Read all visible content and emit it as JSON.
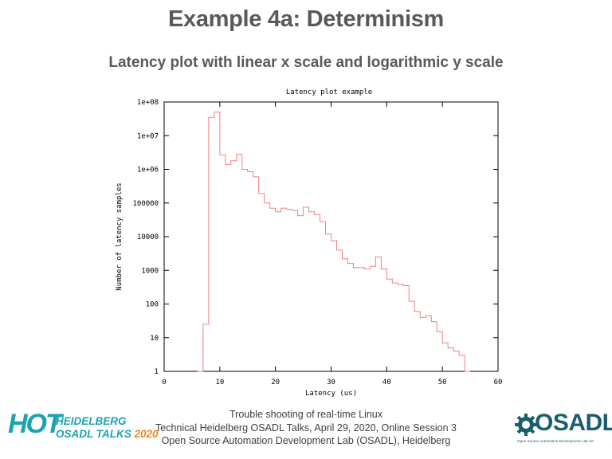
{
  "slide": {
    "title": "Example 4a: Determinism",
    "subtitle": "Latency plot with linear x scale and logarithmic y scale"
  },
  "footer": {
    "line1": "Trouble shooting of real-time Linux",
    "line2": "Technical Heidelberg OSADL Talks, April 29, 2020, Online Session 3",
    "line3": "Open Source Automation Development Lab (OSADL), Heidelberg"
  },
  "logos": {
    "hot": {
      "mark": "HOT",
      "line1": "HEIDELBERG",
      "line2": "OSADL TALKS",
      "year": "2020"
    },
    "osadl": {
      "name": "OSADL",
      "tagline": "Open Source Automation Development Lab eG"
    }
  },
  "colors": {
    "series": "#f08080",
    "title_text": "#595959",
    "hot_teal": "#1aa3b0",
    "hot_orange": "#e8891e",
    "osadl_teal": "#1a5e6e"
  },
  "chart_data": {
    "type": "line",
    "title": "Latency plot example",
    "xlabel": "Latency (us)",
    "ylabel": "Number of latency samples",
    "xlim": [
      0,
      60
    ],
    "ylim": [
      1,
      100000000
    ],
    "y_scale": "log",
    "x_ticks": [
      0,
      10,
      20,
      30,
      40,
      50,
      60
    ],
    "x_tick_labels": [
      "0",
      "10",
      "20",
      "30",
      "40",
      "50",
      "60"
    ],
    "y_ticks": [
      1,
      10,
      100,
      1000,
      10000,
      100000,
      1000000,
      10000000,
      100000000
    ],
    "y_tick_labels": [
      "1",
      "10",
      "100",
      "1000",
      "10000",
      "100000",
      "1e+06",
      "1e+07",
      "1e+08"
    ],
    "grid": false,
    "legend": "none",
    "style": "step",
    "series": [
      {
        "x": [
          6,
          6.3,
          7,
          8,
          9,
          10,
          11,
          12,
          13,
          14,
          15,
          16,
          17,
          18,
          19,
          20,
          21,
          22,
          23,
          24,
          25,
          26,
          27,
          28,
          29,
          30,
          31,
          32,
          33,
          34,
          35,
          36,
          37,
          38,
          39,
          40,
          41,
          42,
          43,
          44,
          45,
          46,
          47,
          48,
          49,
          50,
          51,
          52,
          53,
          54,
          55
        ],
        "y": [
          1,
          1,
          25,
          35000000,
          50000000,
          2700000,
          1400000,
          1800000,
          2800000,
          1000000,
          850000,
          600000,
          190000,
          100000,
          70000,
          55000,
          70000,
          65000,
          60000,
          42000,
          75000,
          55000,
          45000,
          28000,
          12000,
          7500,
          4000,
          2200,
          1600,
          1200,
          1200,
          1100,
          1300,
          2500,
          1100,
          550,
          420,
          380,
          350,
          120,
          60,
          40,
          45,
          30,
          15,
          7,
          5,
          4,
          3,
          1,
          1
        ]
      }
    ]
  }
}
